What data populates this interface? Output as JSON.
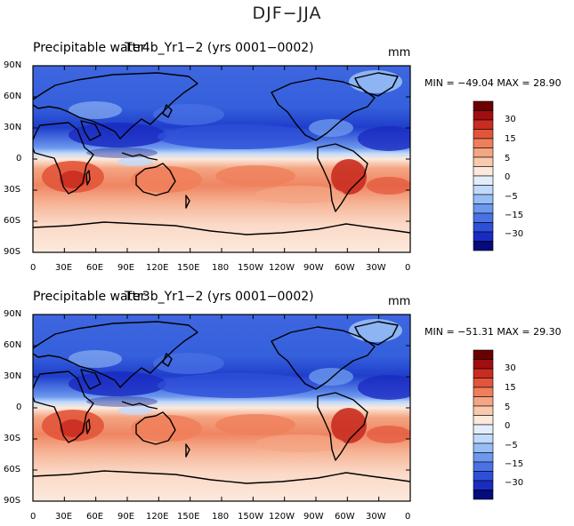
{
  "main_title": "DJF−JJA",
  "colorbar": {
    "colors": [
      "#050A7C",
      "#1A2BC2",
      "#2E4FD8",
      "#4A72E5",
      "#6C98EE",
      "#97BDF5",
      "#C2DAF9",
      "#E4EEFA",
      "#FCE9DC",
      "#F9C9AE",
      "#F4A583",
      "#EF7F5B",
      "#E2553A",
      "#C92C20",
      "#A10E10",
      "#6A0000"
    ],
    "labels": [
      "30",
      "15",
      "5",
      "0",
      "−5",
      "−15",
      "−30"
    ]
  },
  "axes": {
    "y_ticks": [
      "90N",
      "60N",
      "30N",
      "0",
      "30S",
      "60S",
      "90S"
    ],
    "x_ticks": [
      "0",
      "30E",
      "60E",
      "90E",
      "120E",
      "150E",
      "180",
      "150W",
      "120W",
      "90W",
      "60W",
      "30W",
      "0"
    ]
  },
  "panels": [
    {
      "id": "top",
      "title_left": "Precipitable water",
      "title_overlap": "Ttr4b_Yr1−2 (yrs 0001−0002)",
      "units": "mm",
      "minmax": "MIN = −49.04  MAX =   28.90"
    },
    {
      "id": "bottom",
      "title_left": "Precipitable water",
      "title_overlap": "Ttr3b_Yr1−2 (yrs 0001−0002)",
      "units": "mm",
      "minmax": "MIN = −51.31  MAX =   29.30"
    }
  ]
}
